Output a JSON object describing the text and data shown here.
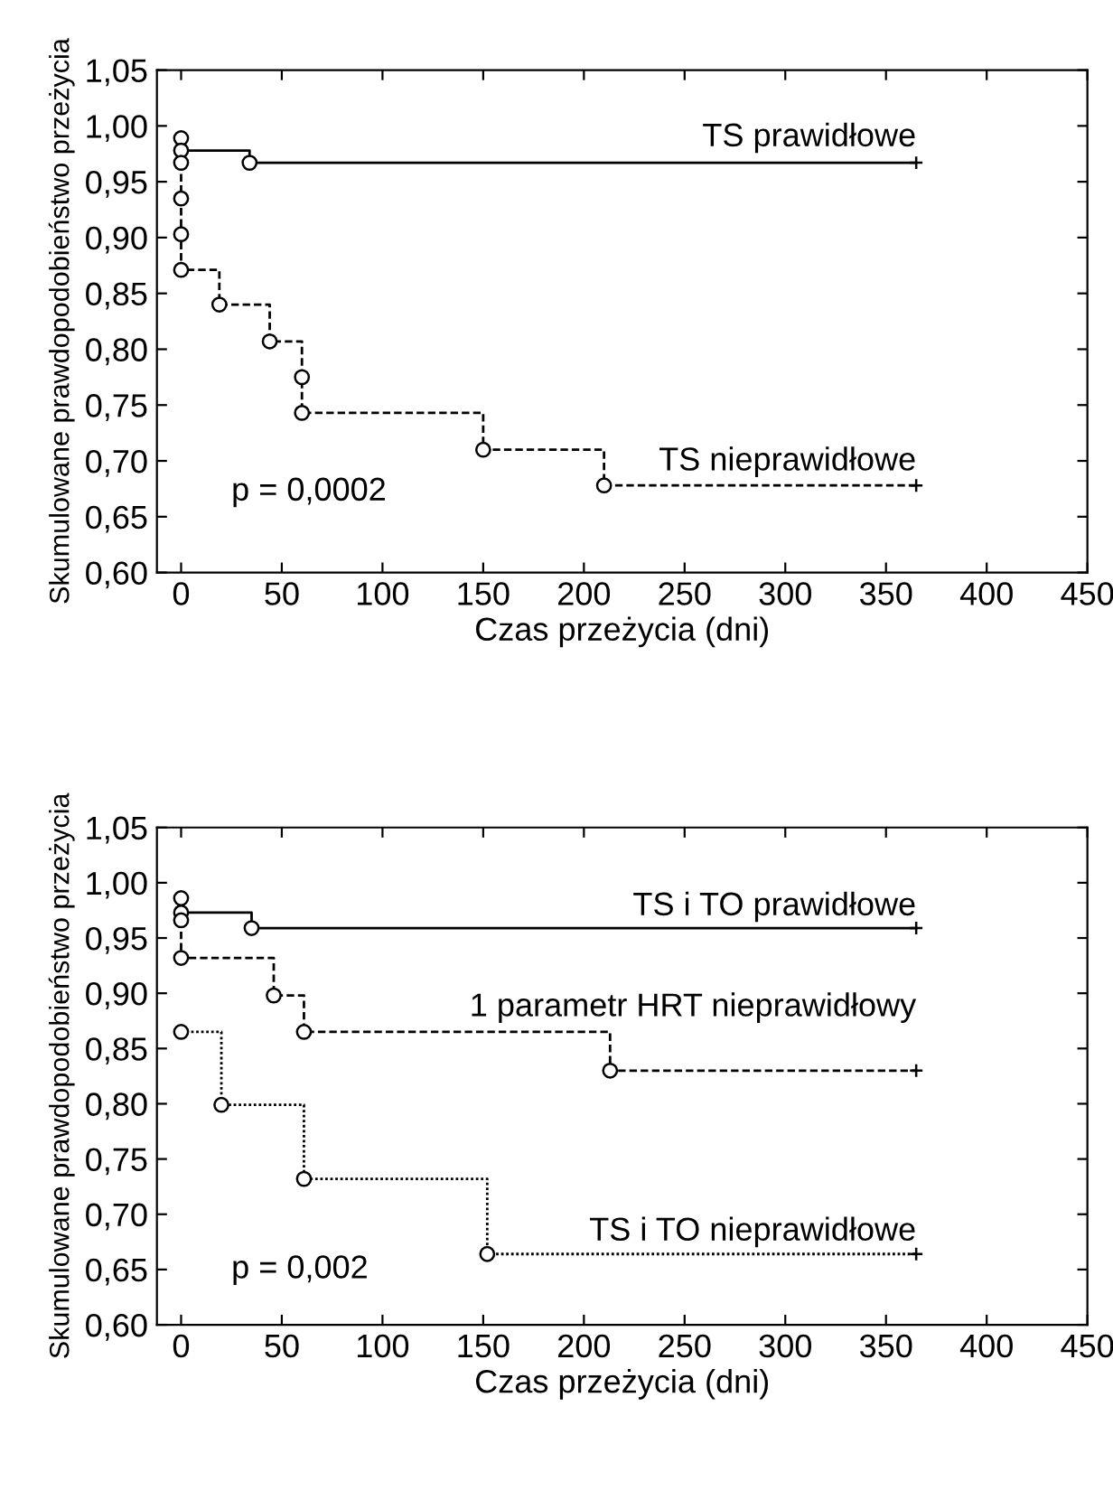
{
  "chart_data": [
    {
      "type": "step",
      "xlabel": "Czas przeżycia (dni)",
      "ylabel": "Skumulowane prawdopodobieństwo przeżycia",
      "xlim": [
        -12,
        450
      ],
      "xticks": [
        0,
        50,
        100,
        150,
        200,
        250,
        300,
        350,
        400,
        450
      ],
      "ylim": [
        0.6,
        1.05
      ],
      "yticks": [
        {
          "value": 0.6,
          "label": "0,60"
        },
        {
          "value": 0.65,
          "label": "0,65"
        },
        {
          "value": 0.7,
          "label": "0,70"
        },
        {
          "value": 0.75,
          "label": "0,75"
        },
        {
          "value": 0.8,
          "label": "0,80"
        },
        {
          "value": 0.85,
          "label": "0,85"
        },
        {
          "value": 0.9,
          "label": "0,90"
        },
        {
          "value": 0.95,
          "label": "0,95"
        },
        {
          "value": 1.0,
          "label": "1,00"
        },
        {
          "value": 1.05,
          "label": "1,05"
        }
      ],
      "grid": false,
      "marker": "circle",
      "series": [
        {
          "color": "#000000",
          "line_style": "solid",
          "x": [
            0,
            0,
            34,
            365
          ],
          "values": [
            0.989,
            0.978,
            0.967,
            0.967
          ]
        },
        {
          "color": "#000000",
          "line_style": "dashed",
          "x": [
            0,
            0,
            0,
            0,
            19,
            44,
            60,
            60,
            150,
            210,
            365
          ],
          "values": [
            0.967,
            0.935,
            0.903,
            0.871,
            0.84,
            0.807,
            0.775,
            0.743,
            0.71,
            0.678,
            0.678
          ]
        }
      ],
      "annotations": [
        "TS prawidłowe",
        "TS nieprawidłowe",
        "p = 0,0002"
      ]
    },
    {
      "type": "step",
      "xlabel": "Czas przeżycia (dni)",
      "ylabel": "Skumulowane prawdopodobieństwo przeżycia",
      "xlim": [
        -12,
        450
      ],
      "xticks": [
        0,
        50,
        100,
        150,
        200,
        250,
        300,
        350,
        400,
        450
      ],
      "ylim": [
        0.6,
        1.05
      ],
      "yticks": [
        {
          "value": 0.6,
          "label": "0,60"
        },
        {
          "value": 0.65,
          "label": "0,65"
        },
        {
          "value": 0.7,
          "label": "0,70"
        },
        {
          "value": 0.75,
          "label": "0,75"
        },
        {
          "value": 0.8,
          "label": "0,80"
        },
        {
          "value": 0.85,
          "label": "0,85"
        },
        {
          "value": 0.9,
          "label": "0,90"
        },
        {
          "value": 0.95,
          "label": "0,95"
        },
        {
          "value": 1.0,
          "label": "1,00"
        },
        {
          "value": 1.05,
          "label": "1,05"
        }
      ],
      "grid": false,
      "marker": "circle",
      "series": [
        {
          "color": "#000000",
          "line_style": "solid",
          "x": [
            0,
            0,
            35,
            365
          ],
          "values": [
            0.986,
            0.973,
            0.959,
            0.959
          ]
        },
        {
          "color": "#000000",
          "line_style": "dashed",
          "x": [
            0,
            0,
            46,
            61,
            213,
            365
          ],
          "values": [
            0.966,
            0.932,
            0.898,
            0.865,
            0.83,
            0.83
          ]
        },
        {
          "color": "#000000",
          "line_style": "dotted",
          "x": [
            0,
            20,
            61,
            152,
            365
          ],
          "values": [
            0.865,
            0.799,
            0.732,
            0.664,
            0.664
          ]
        }
      ],
      "annotations": [
        "TS i TO prawidłowe",
        "1 parametr HRT nieprawidłowy",
        "TS i TO nieprawidłowe",
        "p = 0,002"
      ]
    }
  ]
}
